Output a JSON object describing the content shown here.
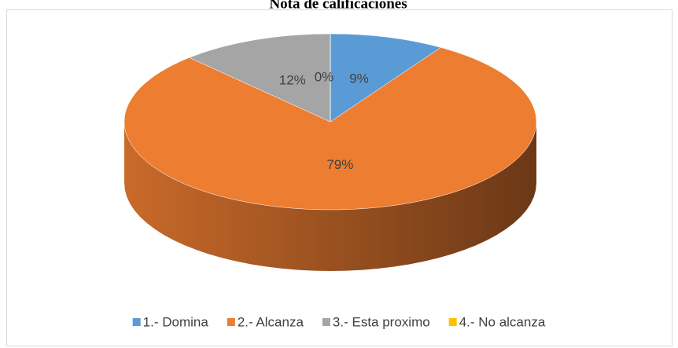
{
  "chart_data": {
    "type": "pie",
    "title": "Nota de calificaciones",
    "categories": [
      "1.- Domina",
      "2.- Alcanza",
      "3.- Esta proximo",
      "4.- No alcanza"
    ],
    "values": [
      9,
      79,
      12,
      0
    ],
    "value_labels": [
      "9%",
      "79%",
      "12%",
      "0%"
    ],
    "colors": [
      "#5b9bd5",
      "#ed7d31",
      "#a5a5a5",
      "#ffc000"
    ],
    "legend": "bottom"
  }
}
